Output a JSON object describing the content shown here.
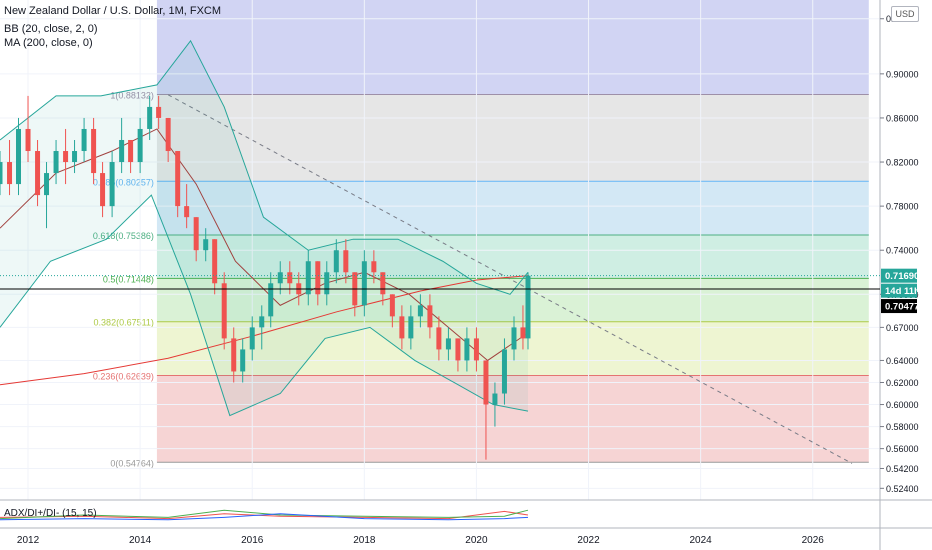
{
  "header": {
    "title": "New Zealand Dollar / U.S. Dollar, 1M, FXCM",
    "indicators": [
      "BB (20, close, 2, 0)",
      "MA (200, close, 0)"
    ],
    "sub_indicator": "ADX/DI+/DI- (15, 15)",
    "currency": "USD"
  },
  "chart_data": {
    "type": "candlestick",
    "title": "New Zealand Dollar / U.S. Dollar, 1M, FXCM",
    "xlabel": "",
    "ylabel": "",
    "xlim": [
      2011.5,
      2027.2
    ],
    "ylim": [
      0.5134,
      0.967
    ],
    "x_ticks": [
      "2012",
      "2014",
      "2016",
      "2018",
      "2020",
      "2022",
      "2024",
      "2026"
    ],
    "y_ticks": [
      "0.95000",
      "0.90000",
      "0.86000",
      "0.82000",
      "0.78000",
      "0.74000",
      "0.70000",
      "0.67000",
      "0.64000",
      "0.62000",
      "0.60000",
      "0.58000",
      "0.56000",
      "0.54200",
      "0.52400"
    ],
    "price_labels": [
      {
        "text": "0.71690",
        "value": 0.7169,
        "color": "#26a69a"
      },
      {
        "text": "14d 11h",
        "value": 0.7075,
        "color": "#26a69a"
      },
      {
        "text": "0.70477",
        "value": 0.70477,
        "color": "#000000"
      }
    ],
    "fib_levels": [
      {
        "label": "1(0.88132)",
        "value": 0.88132,
        "line": "#9e8fa8",
        "fill": "#e6e6e6"
      },
      {
        "label": "0.786(0.80257)",
        "value": 0.80257,
        "line": "#64b5f6",
        "fill": "#d3e8f5"
      },
      {
        "label": "0.618(0.75386)",
        "value": 0.75386,
        "line": "#4caf82",
        "fill": "#cfeee3"
      },
      {
        "label": "0.5(0.71448)",
        "value": 0.71448,
        "line": "#4caf50",
        "fill": "#daf2d6"
      },
      {
        "label": "0.382(0.67511)",
        "value": 0.67511,
        "line": "#aeca46",
        "fill": "#eef5d2"
      },
      {
        "label": "0.236(0.62639)",
        "value": 0.62639,
        "line": "#e57373",
        "fill": "#f6d4d4"
      },
      {
        "label": "0(0.54764)",
        "value": 0.54764,
        "line": "#999999",
        "fill": ""
      }
    ],
    "series": [
      {
        "name": "Price",
        "color_up": "#26a69a",
        "color_down": "#ef5350",
        "ohlc": [
          [
            2011.5,
            0.8,
            0.83,
            0.79,
            0.82
          ],
          [
            2011.67,
            0.82,
            0.84,
            0.79,
            0.8
          ],
          [
            2011.83,
            0.8,
            0.86,
            0.79,
            0.85
          ],
          [
            2012.0,
            0.85,
            0.88,
            0.82,
            0.83
          ],
          [
            2012.17,
            0.83,
            0.84,
            0.78,
            0.79
          ],
          [
            2012.33,
            0.79,
            0.82,
            0.76,
            0.81
          ],
          [
            2012.5,
            0.81,
            0.84,
            0.8,
            0.83
          ],
          [
            2012.67,
            0.83,
            0.85,
            0.8,
            0.82
          ],
          [
            2012.83,
            0.82,
            0.84,
            0.81,
            0.83
          ],
          [
            2013.0,
            0.83,
            0.86,
            0.82,
            0.85
          ],
          [
            2013.17,
            0.85,
            0.86,
            0.8,
            0.81
          ],
          [
            2013.33,
            0.81,
            0.82,
            0.77,
            0.78
          ],
          [
            2013.5,
            0.78,
            0.83,
            0.77,
            0.82
          ],
          [
            2013.67,
            0.82,
            0.86,
            0.81,
            0.84
          ],
          [
            2013.83,
            0.84,
            0.84,
            0.81,
            0.82
          ],
          [
            2014.0,
            0.82,
            0.86,
            0.81,
            0.85
          ],
          [
            2014.17,
            0.85,
            0.88,
            0.84,
            0.87
          ],
          [
            2014.33,
            0.87,
            0.88,
            0.85,
            0.86
          ],
          [
            2014.5,
            0.86,
            0.86,
            0.82,
            0.83
          ],
          [
            2014.67,
            0.83,
            0.83,
            0.77,
            0.78
          ],
          [
            2014.83,
            0.78,
            0.8,
            0.76,
            0.77
          ],
          [
            2015.0,
            0.77,
            0.77,
            0.73,
            0.74
          ],
          [
            2015.17,
            0.74,
            0.76,
            0.73,
            0.75
          ],
          [
            2015.33,
            0.75,
            0.75,
            0.7,
            0.71
          ],
          [
            2015.5,
            0.71,
            0.72,
            0.65,
            0.66
          ],
          [
            2015.67,
            0.66,
            0.67,
            0.62,
            0.63
          ],
          [
            2015.83,
            0.63,
            0.66,
            0.62,
            0.65
          ],
          [
            2016.0,
            0.65,
            0.68,
            0.64,
            0.67
          ],
          [
            2016.17,
            0.67,
            0.69,
            0.65,
            0.68
          ],
          [
            2016.33,
            0.68,
            0.72,
            0.67,
            0.71
          ],
          [
            2016.5,
            0.71,
            0.73,
            0.7,
            0.72
          ],
          [
            2016.67,
            0.72,
            0.73,
            0.7,
            0.71
          ],
          [
            2016.83,
            0.71,
            0.72,
            0.69,
            0.7
          ],
          [
            2017.0,
            0.7,
            0.74,
            0.69,
            0.73
          ],
          [
            2017.17,
            0.73,
            0.73,
            0.69,
            0.7
          ],
          [
            2017.33,
            0.7,
            0.73,
            0.69,
            0.72
          ],
          [
            2017.5,
            0.72,
            0.75,
            0.71,
            0.74
          ],
          [
            2017.67,
            0.74,
            0.75,
            0.71,
            0.72
          ],
          [
            2017.83,
            0.72,
            0.72,
            0.68,
            0.69
          ],
          [
            2018.0,
            0.69,
            0.74,
            0.68,
            0.73
          ],
          [
            2018.17,
            0.73,
            0.74,
            0.71,
            0.72
          ],
          [
            2018.33,
            0.72,
            0.72,
            0.69,
            0.7
          ],
          [
            2018.5,
            0.7,
            0.7,
            0.67,
            0.68
          ],
          [
            2018.67,
            0.68,
            0.69,
            0.65,
            0.66
          ],
          [
            2018.83,
            0.66,
            0.69,
            0.65,
            0.68
          ],
          [
            2019.0,
            0.68,
            0.7,
            0.67,
            0.69
          ],
          [
            2019.17,
            0.69,
            0.7,
            0.66,
            0.67
          ],
          [
            2019.33,
            0.67,
            0.68,
            0.64,
            0.65
          ],
          [
            2019.5,
            0.65,
            0.67,
            0.64,
            0.66
          ],
          [
            2019.67,
            0.66,
            0.66,
            0.63,
            0.64
          ],
          [
            2019.83,
            0.64,
            0.67,
            0.63,
            0.66
          ],
          [
            2020.0,
            0.66,
            0.67,
            0.63,
            0.64
          ],
          [
            2020.17,
            0.64,
            0.64,
            0.55,
            0.6
          ],
          [
            2020.33,
            0.6,
            0.62,
            0.58,
            0.61
          ],
          [
            2020.5,
            0.61,
            0.66,
            0.6,
            0.65
          ],
          [
            2020.67,
            0.65,
            0.68,
            0.64,
            0.67
          ],
          [
            2020.83,
            0.67,
            0.69,
            0.65,
            0.66
          ],
          [
            2020.92,
            0.66,
            0.72,
            0.65,
            0.7169
          ]
        ]
      },
      {
        "name": "MA 200",
        "color": "#e53935",
        "x": [
          2011.5,
          2013,
          2014.5,
          2016,
          2017.5,
          2019,
          2020,
          2020.92
        ],
        "y": [
          0.618,
          0.628,
          0.642,
          0.662,
          0.684,
          0.703,
          0.713,
          0.7169
        ]
      },
      {
        "name": "BB basis",
        "color": "#a1413e",
        "x": [
          2011.5,
          2012.5,
          2013.5,
          2014.3,
          2015,
          2015.7,
          2016.5,
          2017.3,
          2018,
          2018.8,
          2019.5,
          2020.2,
          2020.92
        ],
        "y": [
          0.76,
          0.81,
          0.83,
          0.85,
          0.8,
          0.73,
          0.69,
          0.71,
          0.72,
          0.7,
          0.67,
          0.64,
          0.665
        ]
      },
      {
        "name": "BB upper",
        "color": "#26a69a",
        "x": [
          2011.5,
          2012.5,
          2013.3,
          2014.3,
          2014.9,
          2015.5,
          2016.2,
          2017.0,
          2017.8,
          2018.6,
          2019.4,
          2020.0,
          2020.6,
          2020.92
        ],
        "y": [
          0.84,
          0.88,
          0.88,
          0.89,
          0.93,
          0.87,
          0.77,
          0.74,
          0.75,
          0.75,
          0.73,
          0.71,
          0.7,
          0.72
        ]
      },
      {
        "name": "BB lower",
        "color": "#26a69a",
        "x": [
          2011.5,
          2012.4,
          2013.4,
          2014.2,
          2014.9,
          2015.6,
          2016.5,
          2017.3,
          2018.1,
          2018.9,
          2019.6,
          2020.3,
          2020.92
        ],
        "y": [
          0.67,
          0.73,
          0.75,
          0.79,
          0.7,
          0.59,
          0.61,
          0.66,
          0.67,
          0.64,
          0.62,
          0.6,
          0.594
        ]
      }
    ],
    "legend_position": "top-left",
    "grid": true
  }
}
